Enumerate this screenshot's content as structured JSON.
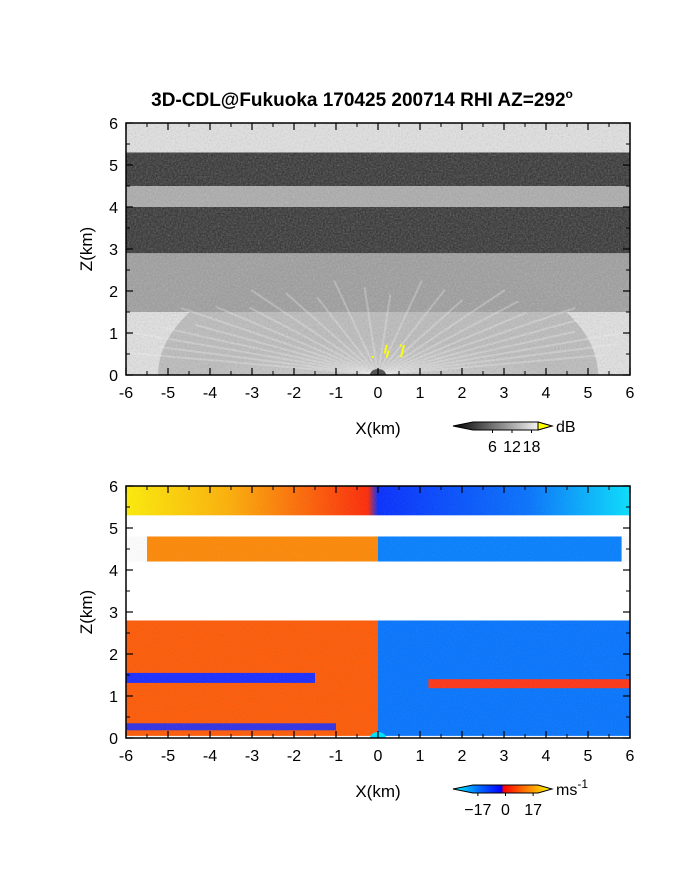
{
  "chart_data": {
    "title": "3D-CDL@Fukuoka 170425 200714 RHI AZ=292",
    "title_suffix": "o",
    "panels": [
      {
        "id": "backscatter",
        "type": "heatmap",
        "xlabel": "X(km)",
        "ylabel": "Z(km)",
        "xlim": [
          -6,
          6
        ],
        "ylim": [
          0,
          6
        ],
        "xticks": [
          "-6",
          "-5",
          "-4",
          "-3",
          "-2",
          "-1",
          "0",
          "1",
          "2",
          "3",
          "4",
          "5",
          "6"
        ],
        "yticks": [
          "0",
          "1",
          "2",
          "3",
          "4",
          "5",
          "6"
        ],
        "colormap": "grayscale",
        "colorbar": {
          "unit": "dB",
          "ticks": [
            {
              "value": 6,
              "label": "6"
            },
            {
              "value": 12,
              "label": "12"
            },
            {
              "value": 18,
              "label": "18"
            }
          ],
          "range": [
            0,
            20
          ],
          "over_color": "#ffff00"
        },
        "layers": [
          {
            "z": [
              0,
              1.5
            ],
            "level_db": 16,
            "pattern": "radial-bright-center"
          },
          {
            "z": [
              1.5,
              2.9
            ],
            "level_db": 11
          },
          {
            "z": [
              2.9,
              4.0
            ],
            "level_db": 3
          },
          {
            "z": [
              4.0,
              4.5
            ],
            "level_db": 12
          },
          {
            "z": [
              4.5,
              5.3
            ],
            "level_db": 3
          },
          {
            "z": [
              5.3,
              6.0
            ],
            "level_db": 16
          }
        ]
      },
      {
        "id": "doppler",
        "type": "heatmap",
        "xlabel": "X(km)",
        "ylabel": "Z(km)",
        "xlim": [
          -6,
          6
        ],
        "ylim": [
          0,
          6
        ],
        "xticks": [
          "-6",
          "-5",
          "-4",
          "-3",
          "-2",
          "-1",
          "0",
          "1",
          "2",
          "3",
          "4",
          "5",
          "6"
        ],
        "yticks": [
          "0",
          "1",
          "2",
          "3",
          "4",
          "5",
          "6"
        ],
        "colormap": "blue-red-yellow",
        "colorbar": {
          "unit": "ms",
          "unit_exp": "-1",
          "ticks": [
            {
              "value": -17,
              "label": "−17"
            },
            {
              "value": 0,
              "label": "0"
            },
            {
              "value": 17,
              "label": "17"
            }
          ],
          "range": [
            -20,
            20
          ]
        },
        "layers": [
          {
            "z": [
              5.3,
              6.0
            ],
            "x": [
              -6,
              6
            ],
            "velocity_ms": {
              "left": 17,
              "right": -17
            },
            "gradient": true
          },
          {
            "z": [
              4.2,
              4.8
            ],
            "x": [
              -5.5,
              5.8
            ],
            "velocity_ms": {
              "left": 8,
              "right": -8
            }
          },
          {
            "z": [
              0.05,
              2.8
            ],
            "x": [
              -6,
              6
            ],
            "velocity_ms": {
              "left": 4,
              "right": -7
            }
          }
        ]
      }
    ]
  }
}
